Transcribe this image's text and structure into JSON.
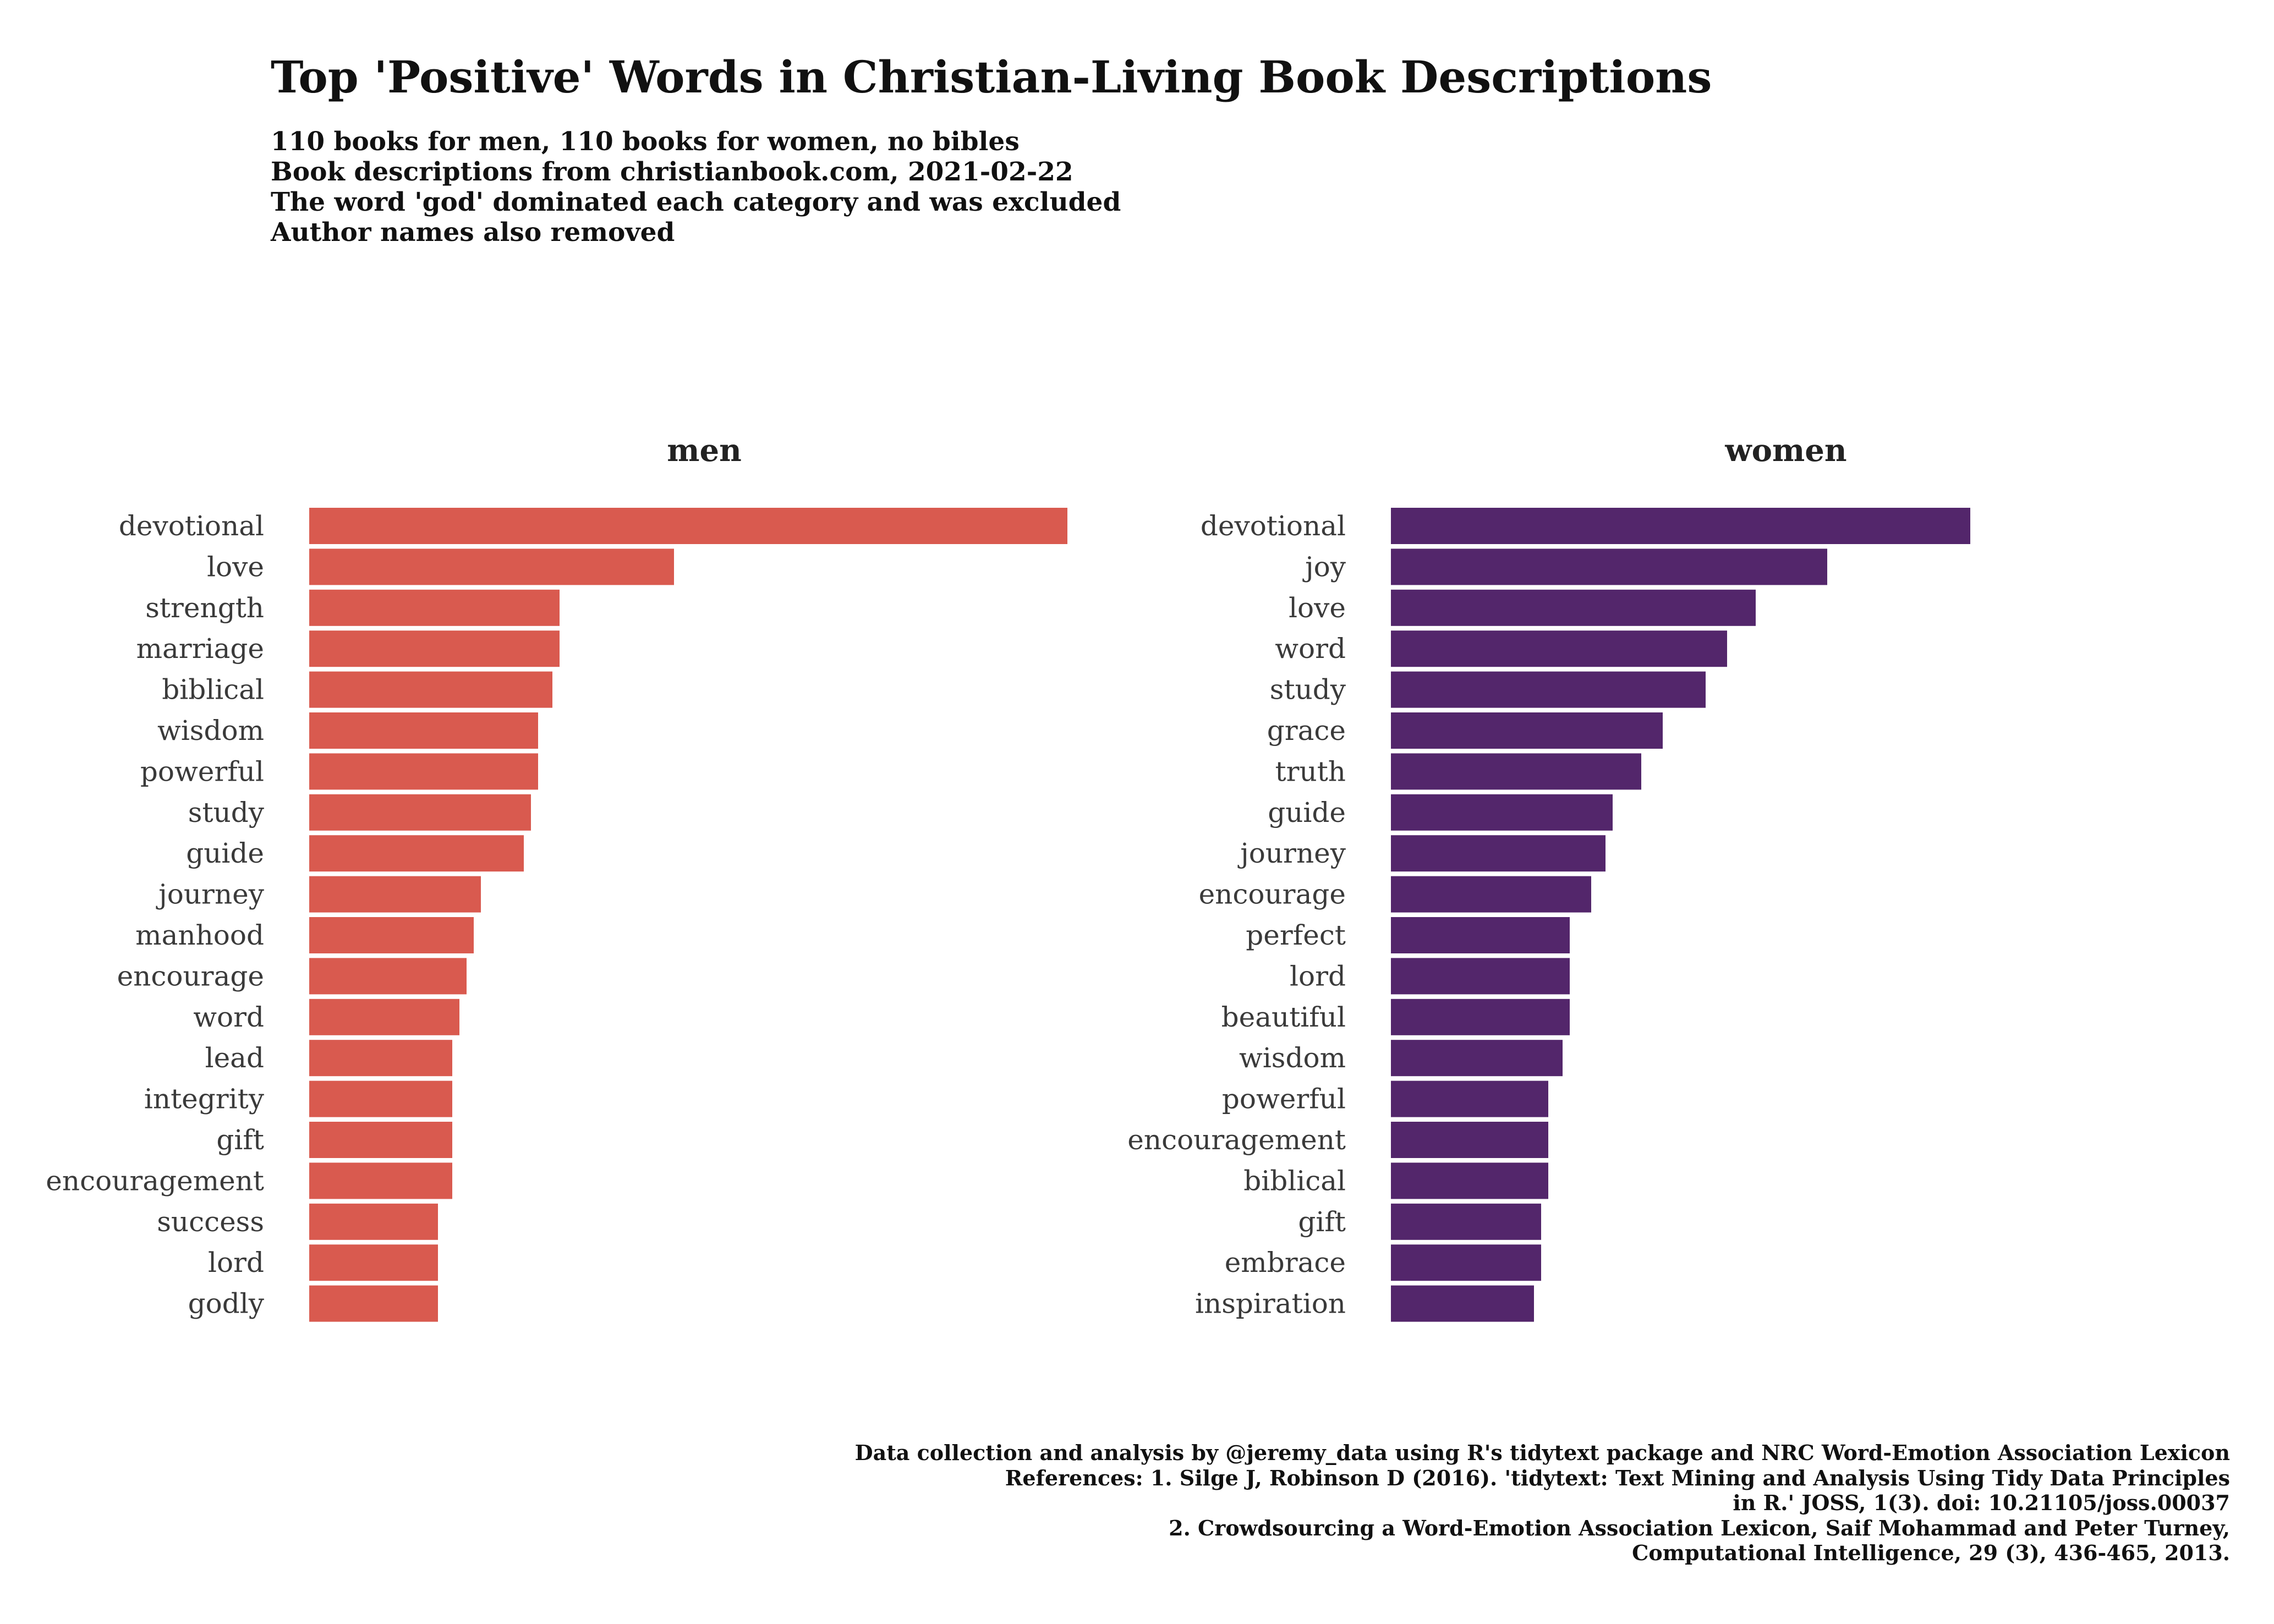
{
  "chart_data": {
    "type": "bar",
    "orientation": "horizontal",
    "title": "Top 'Positive' Words in Christian-Living Book Descriptions",
    "subtitle_lines": [
      "110 books for men, 110 books for women, no bibles",
      "Book descriptions from christianbook.com, 2021-02-22",
      "The word 'god' dominated each category and was excluded",
      "Author names also removed"
    ],
    "caption_lines": [
      "Data collection and analysis by @jeremy_data using R's tidytext package and NRC Word-Emotion Association Lexicon",
      "References: 1. Silge J, Robinson D (2016). 'tidytext: Text Mining and Analysis Using Tidy Data Principles",
      "in R.' JOSS, 1(3). doi: 10.21105/joss.00037",
      "2. Crowdsourcing a Word-Emotion Association Lexicon, Saif Mohammad and Peter Turney,",
      "Computational Intelligence, 29 (3), 436-465, 2013."
    ],
    "xlabel": "",
    "ylabel": "",
    "grid": false,
    "legend": "none",
    "facets": [
      {
        "name": "men",
        "color": "#d95a4f",
        "categories": [
          "devotional",
          "love",
          "strength",
          "marriage",
          "biblical",
          "wisdom",
          "powerful",
          "study",
          "guide",
          "journey",
          "manhood",
          "encourage",
          "word",
          "lead",
          "integrity",
          "gift",
          "encouragement",
          "success",
          "lord",
          "godly"
        ],
        "values": [
          106,
          51,
          35,
          35,
          34,
          32,
          32,
          31,
          30,
          24,
          23,
          22,
          21,
          20,
          20,
          20,
          20,
          18,
          18,
          18
        ]
      },
      {
        "name": "women",
        "color": "#53266b",
        "categories": [
          "devotional",
          "joy",
          "love",
          "word",
          "study",
          "grace",
          "truth",
          "guide",
          "journey",
          "encourage",
          "perfect",
          "lord",
          "beautiful",
          "wisdom",
          "powerful",
          "encouragement",
          "biblical",
          "gift",
          "embrace",
          "inspiration"
        ],
        "values": [
          81,
          61,
          51,
          47,
          44,
          38,
          35,
          31,
          30,
          28,
          25,
          25,
          25,
          24,
          22,
          22,
          22,
          21,
          21,
          20
        ]
      }
    ]
  }
}
